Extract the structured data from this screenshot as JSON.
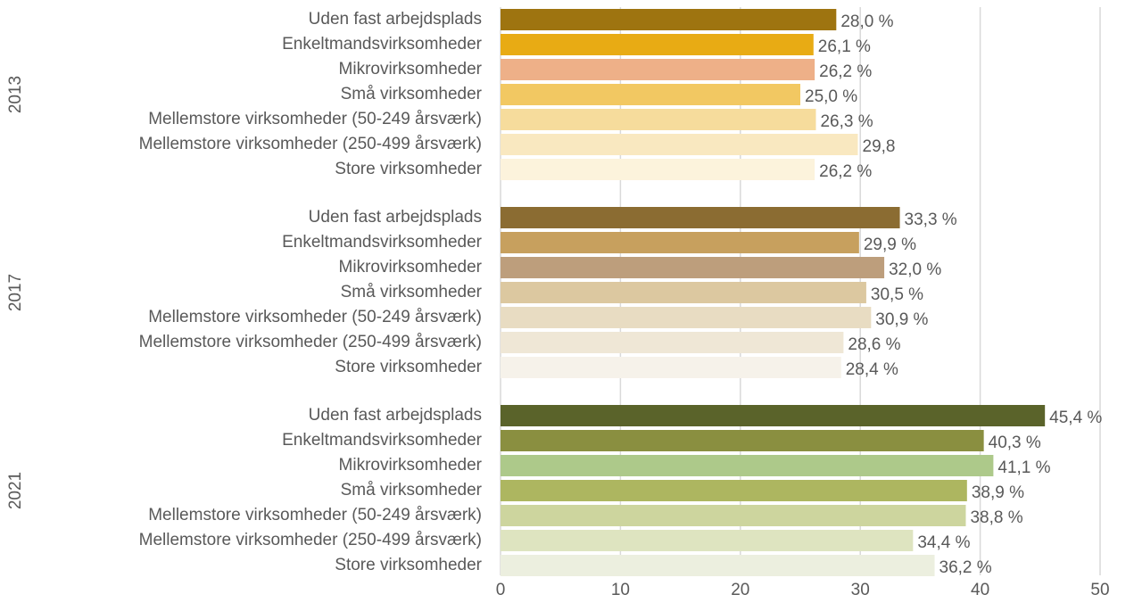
{
  "chart_data": {
    "type": "bar",
    "orientation": "horizontal",
    "xlim": [
      0,
      50
    ],
    "xticks": [
      0,
      10,
      20,
      30,
      40,
      50
    ],
    "grid": true,
    "groups": [
      {
        "name": "2013",
        "categories": [
          "Uden fast arbejdsplads",
          "Enkeltmandsvirksomheder",
          "Mikrovirksomheder",
          "Små virksomheder",
          "Mellemstore virksomheder (50-249 årsværk)",
          "Mellemstore virksomheder (250-499 årsværk)",
          "Store virksomheder"
        ],
        "values": [
          28.0,
          26.1,
          26.2,
          25.0,
          26.3,
          29.8,
          26.2
        ],
        "value_labels": [
          "28,0 %",
          "26,1 %",
          "26,2 %",
          "25,0 %",
          "26,3 %",
          "29,8",
          "26,2 %"
        ],
        "colors": [
          "#9e7410",
          "#e8ab14",
          "#eeb088",
          "#f2c862",
          "#f6dc9c",
          "#f9e8c0",
          "#fcf3dc"
        ]
      },
      {
        "name": "2017",
        "categories": [
          "Uden fast arbejdsplads",
          "Enkeltmandsvirksomheder",
          "Mikrovirksomheder",
          "Små virksomheder",
          "Mellemstore virksomheder (50-249 årsværk)",
          "Mellemstore virksomheder (250-499 årsværk)",
          "Store virksomheder"
        ],
        "values": [
          33.3,
          29.9,
          32.0,
          30.5,
          30.9,
          28.6,
          28.4
        ],
        "value_labels": [
          "33,3 %",
          "29,9 %",
          "32,0 %",
          "30,5 %",
          "30,9 %",
          "28,6 %",
          "28,4 %"
        ],
        "colors": [
          "#8b6c32",
          "#c7a05e",
          "#bd9e7c",
          "#dcc8a0",
          "#e8dcc2",
          "#efe7d6",
          "#f6f2ea"
        ]
      },
      {
        "name": "2021",
        "categories": [
          "Uden fast arbejdsplads",
          "Enkeltmandsvirksomheder",
          "Mikrovirksomheder",
          "Små virksomheder",
          "Mellemstore virksomheder (50-249 årsværk)",
          "Mellemstore virksomheder (250-499 årsværk)",
          "Store virksomheder"
        ],
        "values": [
          45.4,
          40.3,
          41.1,
          38.9,
          38.8,
          34.4,
          36.2
        ],
        "value_labels": [
          "45,4 %",
          "40,3 %",
          "41,1 %",
          "38,9 %",
          "38,8 %",
          "34,4 %",
          "36,2 %"
        ],
        "colors": [
          "#5a632a",
          "#8a8f40",
          "#adc98a",
          "#adb660",
          "#cdd59e",
          "#dee4c0",
          "#ecefdf"
        ]
      }
    ]
  }
}
